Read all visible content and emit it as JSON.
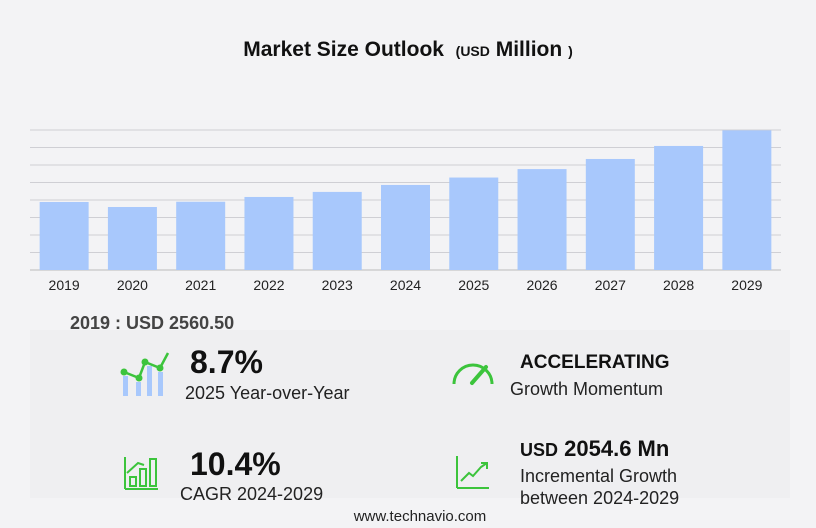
{
  "title": {
    "main": "Market Size Outlook",
    "unit_open": "(",
    "unit": "USD",
    "unit_word": "Million",
    "unit_close": ")"
  },
  "chart_data": {
    "type": "bar",
    "categories": [
      "2019",
      "2020",
      "2021",
      "2022",
      "2023",
      "2024",
      "2025",
      "2026",
      "2027",
      "2028",
      "2029"
    ],
    "values": [
      2560.5,
      2372,
      2570,
      2750,
      2940,
      3202,
      3481,
      3800,
      4180,
      4670,
      5257
    ],
    "ylim": [
      0,
      5271
    ],
    "grid": true,
    "bar_color": "#a8c8fc"
  },
  "base_year_label": "2019 : USD  2560.50",
  "stats": {
    "yoy": {
      "value": "8.7%",
      "label": "2025 Year-over-Year",
      "icon": "growth-chart-icon"
    },
    "momentum": {
      "value": "ACCELERATING",
      "label": "Growth Momentum",
      "icon": "speedometer-icon"
    },
    "cagr": {
      "value": "10.4%",
      "label": "CAGR 2024-2029",
      "icon": "bar-growth-icon"
    },
    "incremental": {
      "prefix": "USD",
      "value": "2054.6 Mn",
      "label1": "Incremental Growth",
      "label2": "between 2024-2029",
      "icon": "trend-line-icon"
    }
  },
  "accent_green": "#3cc43c",
  "footer": "www.technavio.com"
}
